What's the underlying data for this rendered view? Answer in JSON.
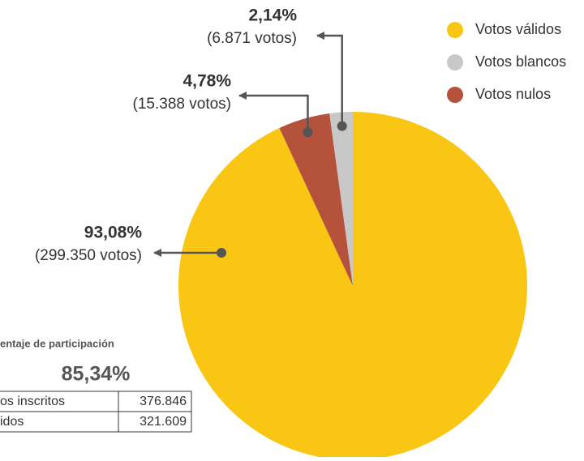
{
  "chart_data": {
    "type": "pie",
    "categories": [
      "Votos válidos",
      "Votos blancos",
      "Votos nulos"
    ],
    "values": [
      93.08,
      2.14,
      4.78
    ],
    "value_labels": [
      "93,08%",
      "2,14%",
      "4,78%"
    ],
    "vote_labels": [
      "(299.350 votos)",
      "(6.871 votos)",
      "(15.388 votos)"
    ],
    "colors": [
      "#f9c614",
      "#c8c8c8",
      "#b5523b"
    ],
    "legend": "top-right"
  },
  "table": {
    "title": "entaje de participación",
    "highlight": "85,34%",
    "rows": [
      [
        "os inscritos",
        "376.846"
      ],
      [
        "idos",
        "321.609"
      ]
    ]
  }
}
